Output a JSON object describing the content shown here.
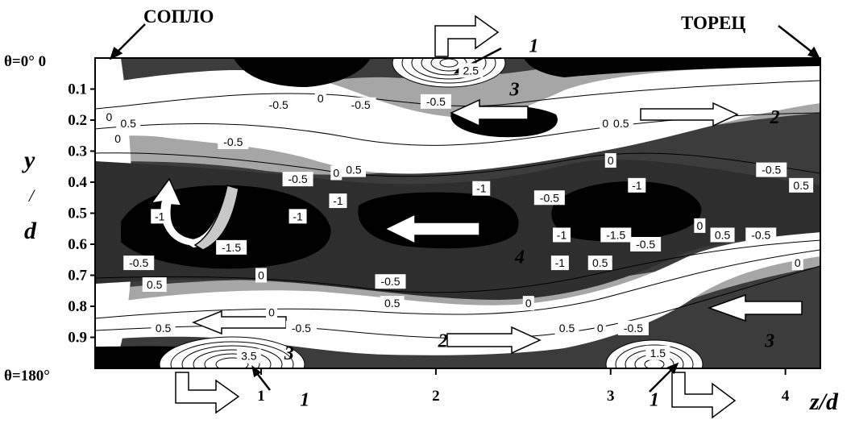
{
  "chart_data": {
    "type": "contour",
    "labels": {
      "nozzle": "СОПЛО",
      "end_wall": "ТОРЕЦ",
      "theta_top": "θ=0° 0",
      "theta_bottom": "θ=180°",
      "ylabel_parts": [
        "y",
        "/",
        "d"
      ],
      "xlabel": "z/d"
    },
    "xlim": [
      0.05,
      4.2
    ],
    "ylim": [
      0,
      1
    ],
    "xticks": [
      "1",
      "2",
      "3",
      "4"
    ],
    "xtick_values": [
      1,
      2,
      3,
      4
    ],
    "yticks": [
      "0.1",
      "0.2",
      "0.3",
      "0.4",
      "0.5",
      "0.6",
      "0.7",
      "0.8",
      "0.9"
    ],
    "ytick_values": [
      0.1,
      0.2,
      0.3,
      0.4,
      0.5,
      0.6,
      0.7,
      0.8,
      0.9
    ],
    "colors": {
      "very_negative": "#000000",
      "negative": "#3c3c3c",
      "transition": "#a6a6a6",
      "positive": "#ffffff",
      "frame": "#000000"
    },
    "contour_labels": [
      {
        "text": "2.5",
        "z": 2.2,
        "y": 0.04
      },
      {
        "text": "-0.5",
        "z": 1.1,
        "y": 0.15
      },
      {
        "text": "0",
        "z": 1.34,
        "y": 0.13
      },
      {
        "text": "-0.5",
        "z": 1.57,
        "y": 0.15
      },
      {
        "text": "-0.5",
        "z": 2.0,
        "y": 0.14
      },
      {
        "text": "0",
        "z": 0.13,
        "y": 0.19
      },
      {
        "text": "0.5",
        "z": 0.24,
        "y": 0.21
      },
      {
        "text": "0",
        "z": 0.18,
        "y": 0.26
      },
      {
        "text": "-0.5",
        "z": 0.84,
        "y": 0.27
      },
      {
        "text": "0",
        "z": 2.97,
        "y": 0.21
      },
      {
        "text": "0.5",
        "z": 3.06,
        "y": 0.21
      },
      {
        "text": "0",
        "z": 1.43,
        "y": 0.37
      },
      {
        "text": "0.5",
        "z": 1.53,
        "y": 0.36
      },
      {
        "text": "-0.5",
        "z": 1.21,
        "y": 0.39
      },
      {
        "text": "0",
        "z": 3.0,
        "y": 0.33
      },
      {
        "text": "-0.5",
        "z": 3.92,
        "y": 0.36
      },
      {
        "text": "-1",
        "z": 1.44,
        "y": 0.46
      },
      {
        "text": "-1",
        "z": 2.26,
        "y": 0.42
      },
      {
        "text": "-0.5",
        "z": 2.65,
        "y": 0.45
      },
      {
        "text": "-1",
        "z": 3.15,
        "y": 0.41
      },
      {
        "text": "0.5",
        "z": 4.09,
        "y": 0.41
      },
      {
        "text": "-1",
        "z": 0.42,
        "y": 0.51
      },
      {
        "text": "-1",
        "z": 1.21,
        "y": 0.51
      },
      {
        "text": "-1.5",
        "z": 0.83,
        "y": 0.61
      },
      {
        "text": "-1",
        "z": 2.72,
        "y": 0.57
      },
      {
        "text": "-1.5",
        "z": 3.03,
        "y": 0.57
      },
      {
        "text": "-0.5",
        "z": 3.2,
        "y": 0.6
      },
      {
        "text": "0",
        "z": 3.51,
        "y": 0.54
      },
      {
        "text": "0.5",
        "z": 3.64,
        "y": 0.57
      },
      {
        "text": "-0.5",
        "z": 3.86,
        "y": 0.57
      },
      {
        "text": "-0.5",
        "z": 0.3,
        "y": 0.66
      },
      {
        "text": "-1",
        "z": 2.71,
        "y": 0.66
      },
      {
        "text": "0.5",
        "z": 2.94,
        "y": 0.66
      },
      {
        "text": "0",
        "z": 4.07,
        "y": 0.66
      },
      {
        "text": "0",
        "z": 1.0,
        "y": 0.7
      },
      {
        "text": "0.5",
        "z": 0.39,
        "y": 0.73
      },
      {
        "text": "-0.5",
        "z": 1.74,
        "y": 0.72
      },
      {
        "text": "0.5",
        "z": 1.75,
        "y": 0.79
      },
      {
        "text": "0",
        "z": 2.53,
        "y": 0.79
      },
      {
        "text": "0",
        "z": 1.06,
        "y": 0.82
      },
      {
        "text": "0.5",
        "z": 0.44,
        "y": 0.87
      },
      {
        "text": "-0.5",
        "z": 1.23,
        "y": 0.87
      },
      {
        "text": "0.5",
        "z": 2.75,
        "y": 0.87
      },
      {
        "text": "0",
        "z": 2.94,
        "y": 0.87
      },
      {
        "text": "-0.5",
        "z": 3.13,
        "y": 0.87
      },
      {
        "text": "3.5",
        "z": 0.93,
        "y": 0.96
      },
      {
        "text": "1.5",
        "z": 3.27,
        "y": 0.95
      }
    ],
    "zone_labels": [
      {
        "text": "1",
        "z": 2.56,
        "y": -0.04
      },
      {
        "text": "3",
        "z": 2.45,
        "y": 0.1
      },
      {
        "text": "2",
        "z": 3.94,
        "y": 0.19
      },
      {
        "text": "4",
        "z": 2.48,
        "y": 0.64
      },
      {
        "text": "2",
        "z": 2.04,
        "y": 0.91
      },
      {
        "text": "3",
        "z": 1.16,
        "y": 0.95
      },
      {
        "text": "3",
        "z": 3.91,
        "y": 0.91
      },
      {
        "text": "1",
        "z": 1.25,
        "y": 1.1
      },
      {
        "text": "1",
        "z": 3.25,
        "y": 1.1
      }
    ]
  }
}
